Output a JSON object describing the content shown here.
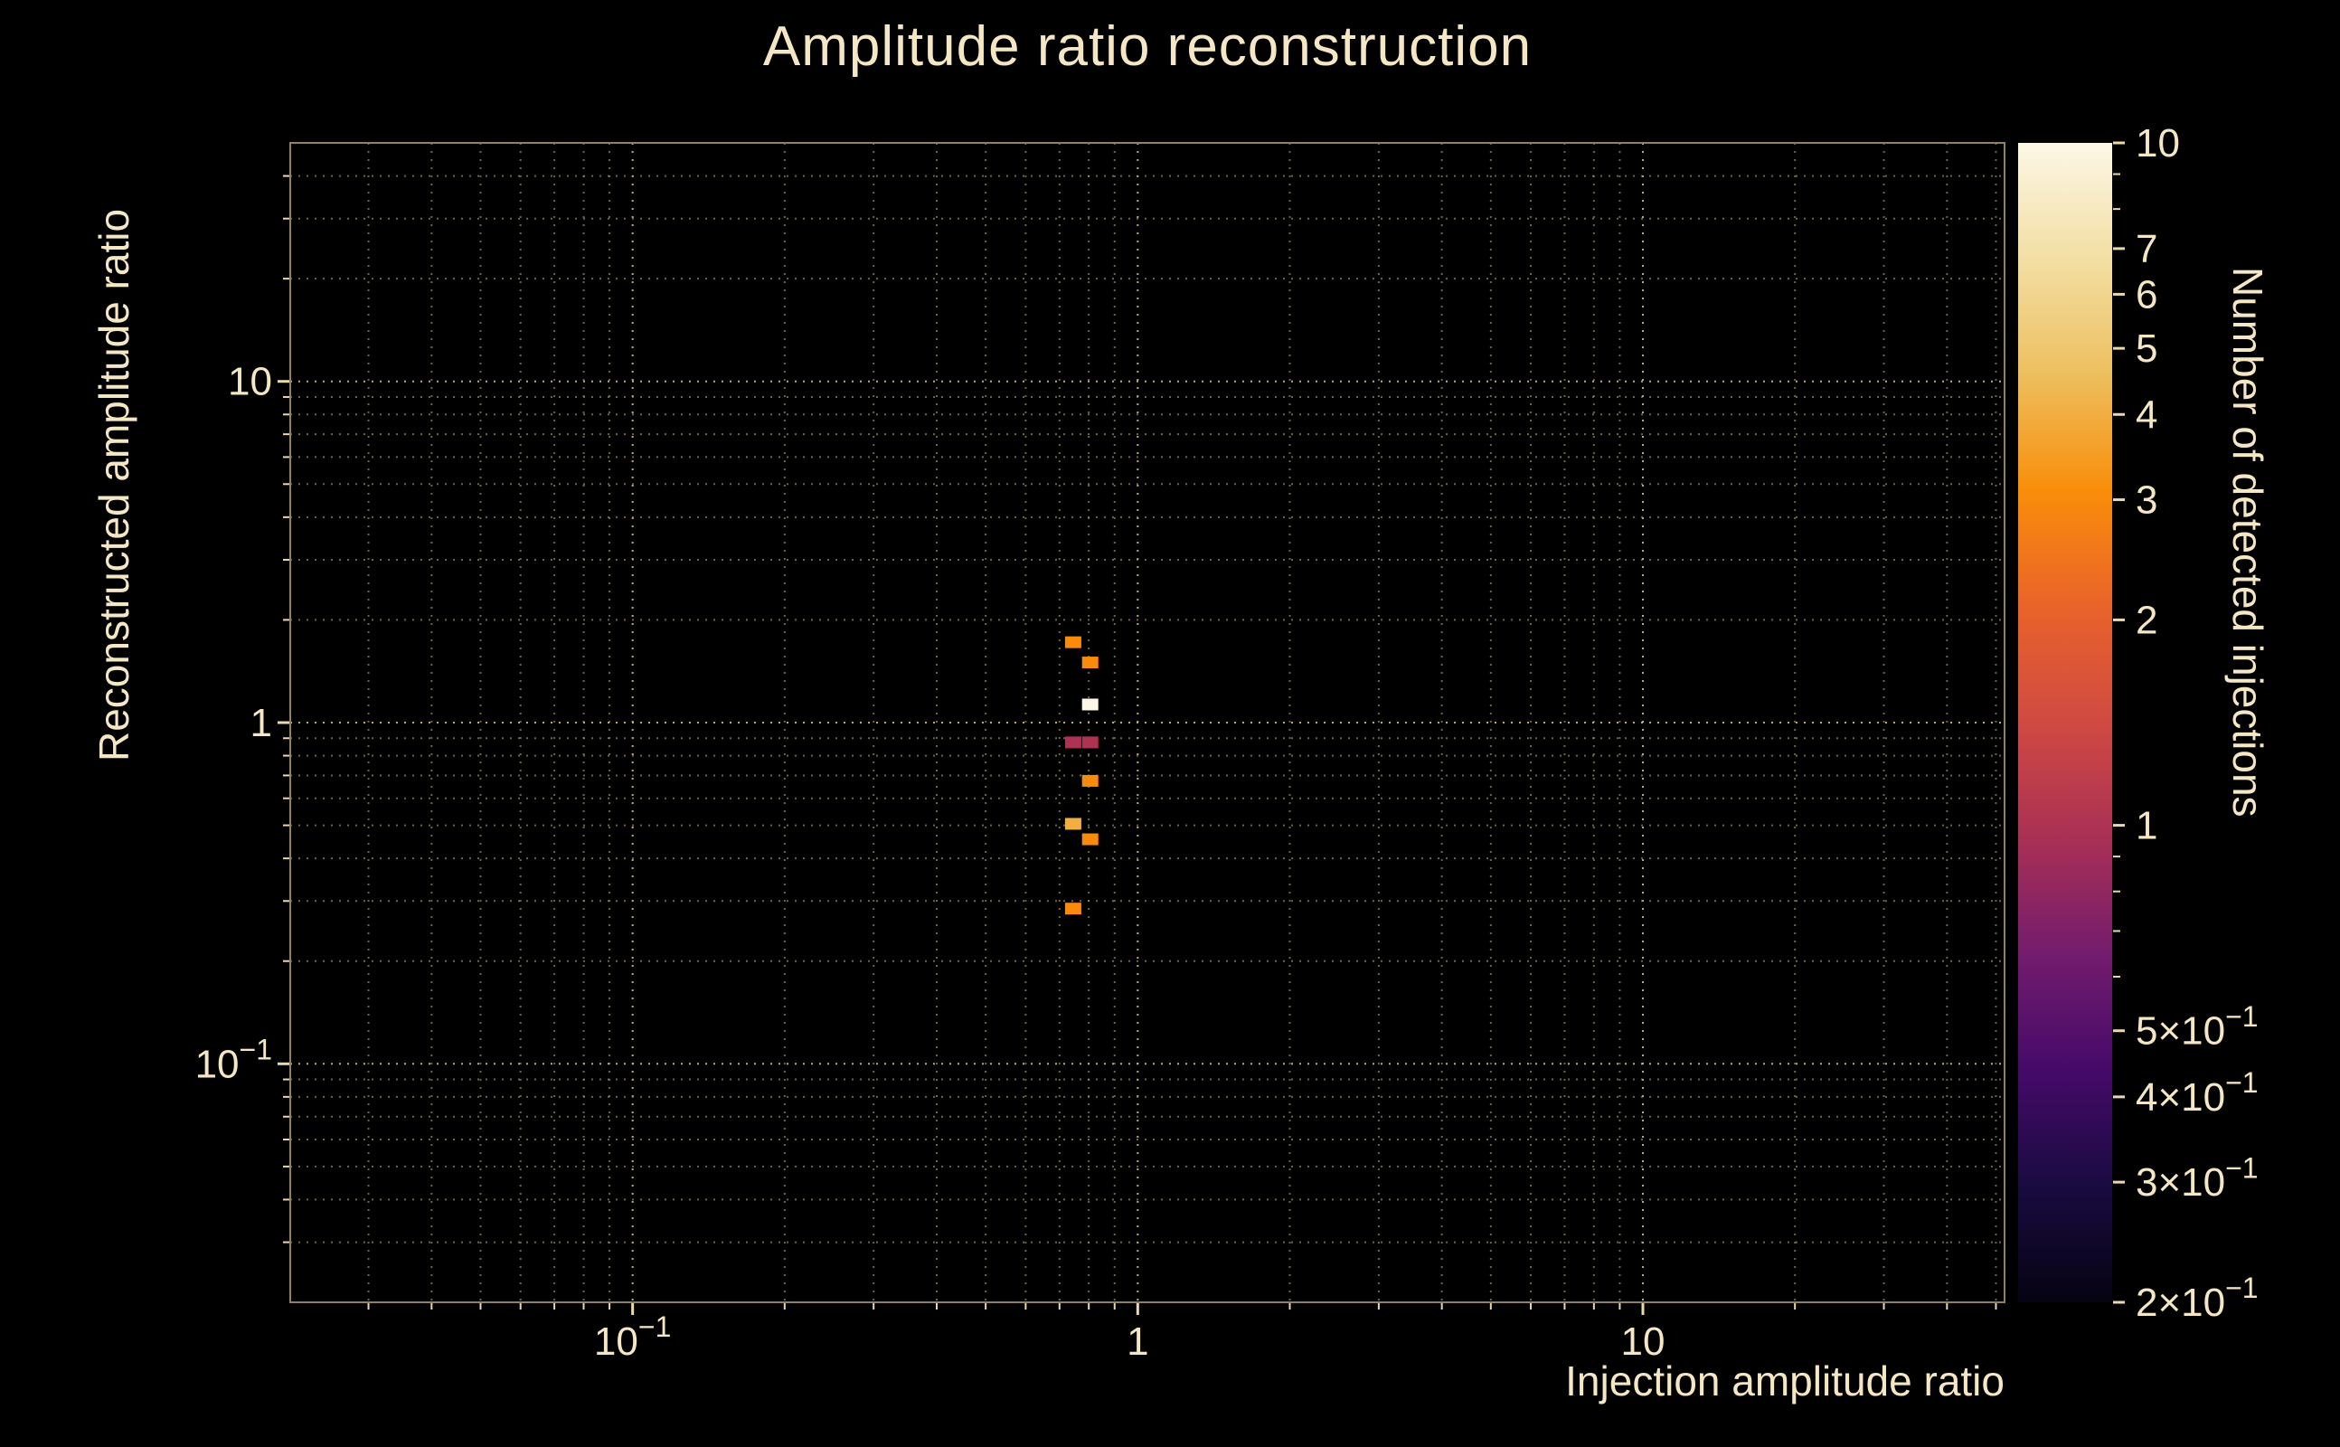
{
  "style": {
    "background": "#000000",
    "text_color": "#f5e7c3",
    "grid_minor_color": "#a89a74",
    "grid_major_color": "#c4b488",
    "tick_color": "#ead9ac",
    "frame_color": "#8f825f"
  },
  "chart_data": {
    "type": "heatmap",
    "title": "Amplitude ratio reconstruction",
    "xlabel": "Injection amplitude ratio",
    "ylabel": "Reconstructed amplitude ratio",
    "zlabel": "Number of detected injections",
    "x_scale": "log",
    "y_scale": "log",
    "z_scale": "log",
    "xlim": [
      0.021,
      52
    ],
    "ylim": [
      0.02,
      50
    ],
    "zlim": [
      0.2,
      10
    ],
    "grid": {
      "on": true,
      "style": "dotted"
    },
    "x_axis": {
      "major_ticks": [
        {
          "v": 0.1,
          "text": "10",
          "exp": "−1"
        },
        {
          "v": 1,
          "text": "1"
        },
        {
          "v": 10,
          "text": "10"
        }
      ],
      "minor_ticks": [
        0.03,
        0.04,
        0.05,
        0.06,
        0.07,
        0.08,
        0.09,
        0.2,
        0.3,
        0.4,
        0.5,
        0.6,
        0.7,
        0.8,
        0.9,
        2,
        3,
        4,
        5,
        6,
        7,
        8,
        9,
        20,
        30,
        40,
        50
      ]
    },
    "y_axis": {
      "major_ticks": [
        {
          "v": 10,
          "text": "10"
        },
        {
          "v": 1,
          "text": "1"
        },
        {
          "v": 0.1,
          "text": "10",
          "exp": "−1"
        }
      ],
      "minor_ticks": [
        0.03,
        0.04,
        0.05,
        0.06,
        0.07,
        0.08,
        0.09,
        0.2,
        0.3,
        0.4,
        0.5,
        0.6,
        0.7,
        0.8,
        0.9,
        2,
        3,
        4,
        5,
        6,
        7,
        8,
        9,
        20,
        30,
        40
      ]
    },
    "colorbar": {
      "ticks": [
        {
          "v": 10,
          "text": "10"
        },
        {
          "v": 7,
          "text": "7"
        },
        {
          "v": 6,
          "text": "6"
        },
        {
          "v": 5,
          "text": "5"
        },
        {
          "v": 4,
          "text": "4"
        },
        {
          "v": 3,
          "text": "3"
        },
        {
          "v": 2,
          "text": "2"
        },
        {
          "v": 1,
          "text": "1"
        },
        {
          "v": 0.5,
          "text": "5×10",
          "exp": "−1"
        },
        {
          "v": 0.4,
          "text": "4×10",
          "exp": "−1"
        },
        {
          "v": 0.3,
          "text": "3×10",
          "exp": "−1"
        },
        {
          "v": 0.2,
          "text": "2×10",
          "exp": "−1"
        }
      ],
      "minor_ticks": [
        9,
        8,
        0.9,
        0.8,
        0.7,
        0.6
      ],
      "stops": [
        [
          0.0,
          "#060312"
        ],
        [
          0.1,
          "#190b40"
        ],
        [
          0.2,
          "#450a69"
        ],
        [
          0.3,
          "#731c6d"
        ],
        [
          0.4,
          "#a93055"
        ],
        [
          0.5,
          "#d04a42"
        ],
        [
          0.6,
          "#e9632a"
        ],
        [
          0.7,
          "#f98e09"
        ],
        [
          0.8,
          "#edbf5e"
        ],
        [
          0.9,
          "#f3dfa4"
        ],
        [
          1.0,
          "#fcf7e6"
        ]
      ]
    },
    "cells": [
      {
        "x": 0.745,
        "y": 1.72,
        "count": 3
      },
      {
        "x": 0.805,
        "y": 1.5,
        "count": 3
      },
      {
        "x": 0.805,
        "y": 1.13,
        "count": 10
      },
      {
        "x": 0.745,
        "y": 0.875,
        "count": 1
      },
      {
        "x": 0.805,
        "y": 0.875,
        "count": 1
      },
      {
        "x": 0.805,
        "y": 0.675,
        "count": 3
      },
      {
        "x": 0.745,
        "y": 0.505,
        "count": 4
      },
      {
        "x": 0.805,
        "y": 0.455,
        "count": 3
      },
      {
        "x": 0.745,
        "y": 0.285,
        "count": 3
      }
    ]
  }
}
